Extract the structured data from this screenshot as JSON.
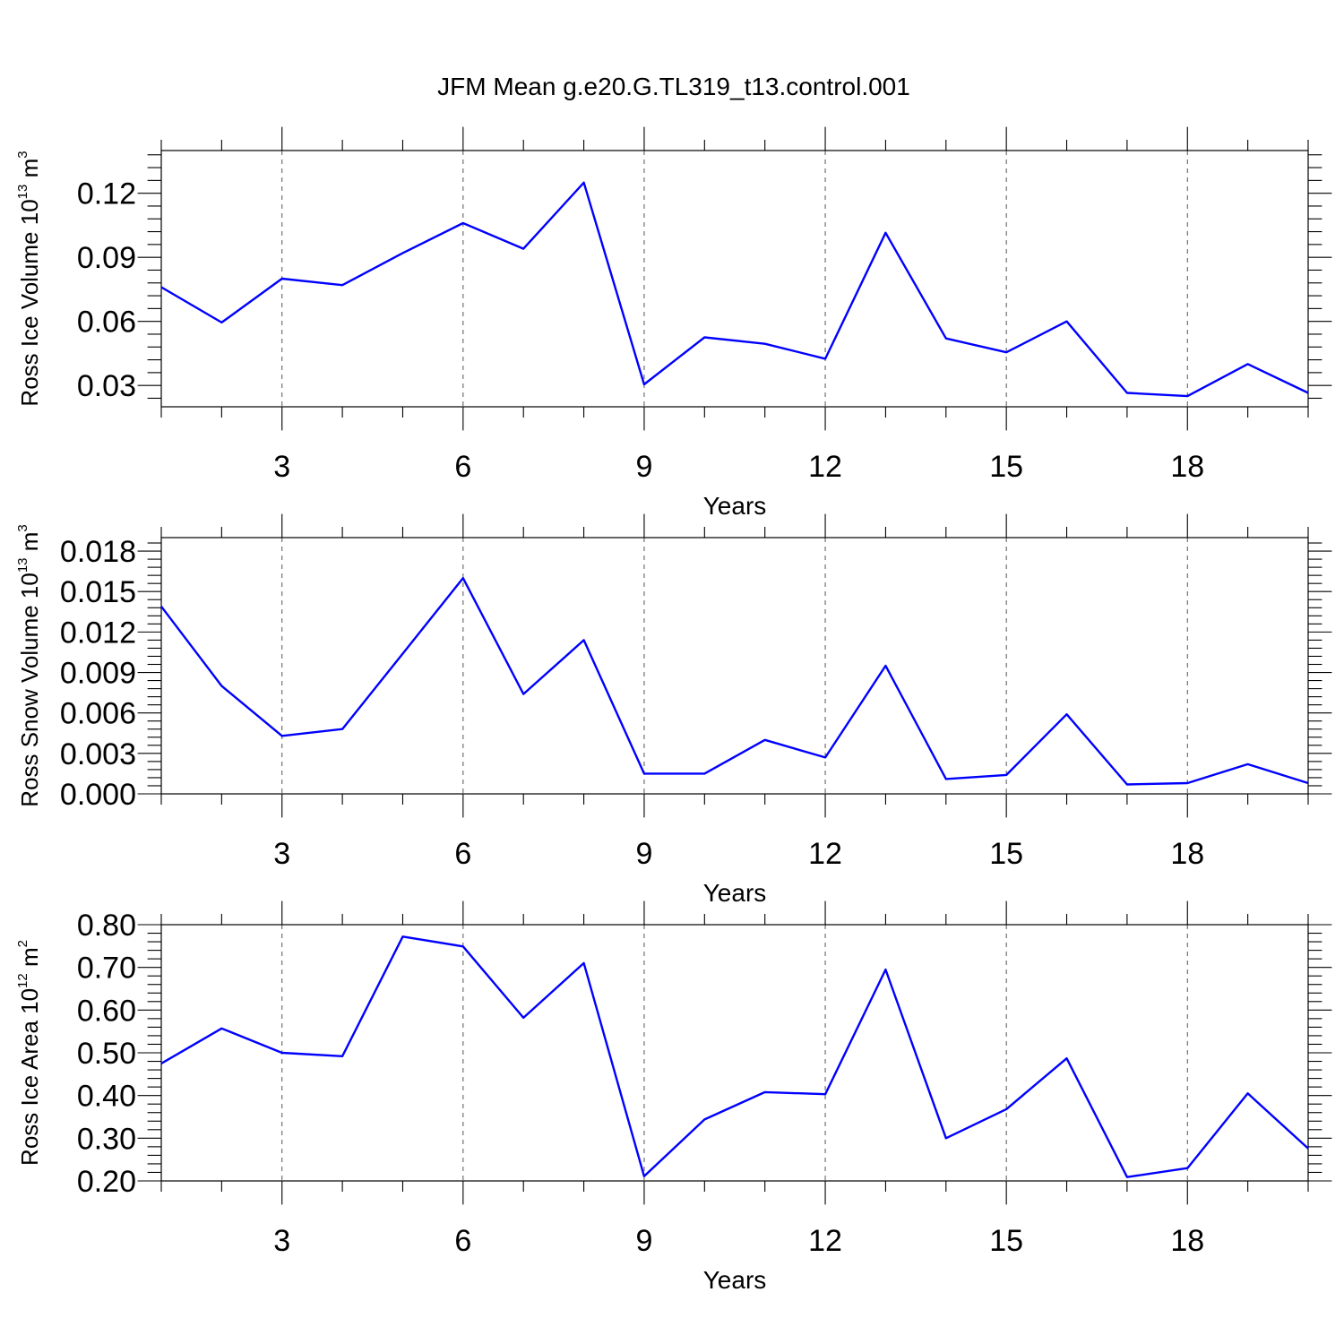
{
  "figure": {
    "title": "JFM Mean g.e20.G.TL319_t13.control.001"
  },
  "colors": {
    "line": "#0000ff",
    "grid": "#555555"
  },
  "chart_data": [
    {
      "type": "line",
      "ylabel": {
        "base": "Ross Ice Volume 10",
        "exp": "13",
        "unit": " m",
        "unit_exp": "3"
      },
      "xlabel": "Years",
      "x_ticks": [
        3,
        6,
        9,
        12,
        15,
        18
      ],
      "y_ticks": [
        0.03,
        0.06,
        0.09,
        0.12
      ],
      "y_tick_labels": [
        "0.03",
        "0.06",
        "0.09",
        "0.12"
      ],
      "xlim": [
        1,
        20
      ],
      "ylim": [
        0.02,
        0.14
      ],
      "grid": "vertical dashed at major x ticks",
      "x": [
        1,
        2,
        3,
        4,
        5,
        6,
        7,
        8,
        9,
        10,
        11,
        12,
        13,
        14,
        15,
        16,
        17,
        18,
        19,
        20
      ],
      "series": [
        {
          "values": [
            0.076,
            0.0595,
            0.08,
            0.077,
            0.092,
            0.106,
            0.094,
            0.125,
            0.0305,
            0.0525,
            0.0495,
            0.0425,
            0.1015,
            0.052,
            0.0455,
            0.06,
            0.0265,
            0.025,
            0.04,
            0.0265
          ]
        }
      ]
    },
    {
      "type": "line",
      "ylabel": {
        "base": "Ross Snow Volume 10",
        "exp": "13",
        "unit": " m",
        "unit_exp": "3"
      },
      "xlabel": "Years",
      "x_ticks": [
        3,
        6,
        9,
        12,
        15,
        18
      ],
      "y_ticks": [
        0.0,
        0.003,
        0.006,
        0.009,
        0.012,
        0.015,
        0.018
      ],
      "y_tick_labels": [
        "0.000",
        "0.003",
        "0.006",
        "0.009",
        "0.012",
        "0.015",
        "0.018"
      ],
      "xlim": [
        1,
        20
      ],
      "ylim": [
        0.0,
        0.019
      ],
      "grid": "vertical dashed at major x ticks",
      "x": [
        1,
        2,
        3,
        4,
        5,
        6,
        7,
        8,
        9,
        10,
        11,
        12,
        13,
        14,
        15,
        16,
        17,
        18,
        19,
        20
      ],
      "series": [
        {
          "values": [
            0.0139,
            0.008,
            0.0043,
            0.0048,
            0.0104,
            0.016,
            0.0074,
            0.0114,
            0.0015,
            0.0015,
            0.004,
            0.0027,
            0.0095,
            0.0011,
            0.0014,
            0.0059,
            0.0007,
            0.0008,
            0.0022,
            0.0008
          ]
        }
      ]
    },
    {
      "type": "line",
      "ylabel": {
        "base": "Ross Ice Area 10",
        "exp": "12",
        "unit": " m",
        "unit_exp": "2"
      },
      "xlabel": "Years",
      "x_ticks": [
        3,
        6,
        9,
        12,
        15,
        18
      ],
      "y_ticks": [
        0.2,
        0.3,
        0.4,
        0.5,
        0.6,
        0.7,
        0.8
      ],
      "y_tick_labels": [
        "0.20",
        "0.30",
        "0.40",
        "0.50",
        "0.60",
        "0.70",
        "0.80"
      ],
      "xlim": [
        1,
        20
      ],
      "ylim": [
        0.2,
        0.8
      ],
      "grid": "vertical dashed at major x ticks",
      "x": [
        1,
        2,
        3,
        4,
        5,
        6,
        7,
        8,
        9,
        10,
        11,
        12,
        13,
        14,
        15,
        16,
        17,
        18,
        19,
        20
      ],
      "series": [
        {
          "values": [
            0.475,
            0.557,
            0.5,
            0.492,
            0.772,
            0.749,
            0.582,
            0.71,
            0.211,
            0.344,
            0.408,
            0.403,
            0.695,
            0.3,
            0.368,
            0.487,
            0.209,
            0.23,
            0.405,
            0.276
          ]
        }
      ]
    }
  ]
}
